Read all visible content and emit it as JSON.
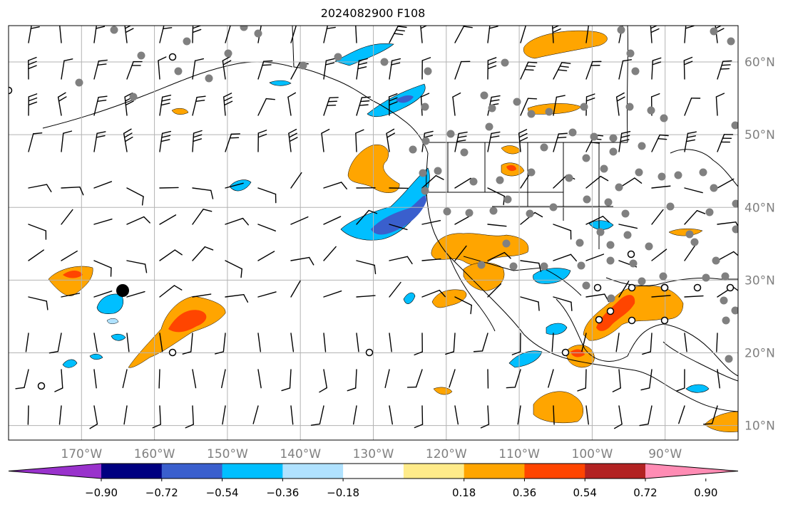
{
  "title": "2024082900 F108",
  "map": {
    "lon_range": [
      -180,
      -80
    ],
    "lat_range": [
      8,
      65
    ],
    "lon_ticks": [
      {
        "lon": -170,
        "label": "170°W"
      },
      {
        "lon": -160,
        "label": "160°W"
      },
      {
        "lon": -150,
        "label": "150°W"
      },
      {
        "lon": -140,
        "label": "140°W"
      },
      {
        "lon": -130,
        "label": "130°W"
      },
      {
        "lon": -120,
        "label": "120°W"
      },
      {
        "lon": -110,
        "label": "110°W"
      },
      {
        "lon": -100,
        "label": "100°W"
      },
      {
        "lon": -90,
        "label": "90°W"
      }
    ],
    "lat_ticks": [
      {
        "lat": 60,
        "label": "60°N"
      },
      {
        "lat": 50,
        "label": "50°N"
      },
      {
        "lat": 40,
        "label": "40°N"
      },
      {
        "lat": 30,
        "label": "30°N"
      },
      {
        "lat": 20,
        "label": "20°N"
      },
      {
        "lat": 10,
        "label": "10°N"
      }
    ],
    "gridlines": true,
    "wind_barbs": "shown",
    "station_markers": "gray filled circles, open circles, one large black dot"
  },
  "colorbar": {
    "orientation": "horizontal",
    "extend": "both",
    "tick_labels": [
      "−0.90",
      "−0.72",
      "−0.54",
      "−0.36",
      "−0.18",
      "0.18",
      "0.36",
      "0.54",
      "0.72",
      "0.90"
    ],
    "colors": [
      "#9932cc",
      "#000080",
      "#3a5fcd",
      "#00bfff",
      "#b0e2ff",
      "#ffffff",
      "#ffeb8a",
      "#ffa500",
      "#ff4500",
      "#b22222",
      "#ff8cb4"
    ]
  },
  "contour_fill_colors": {
    "weak_negative": "#b0e2ff",
    "negative": "#00bfff",
    "strong_negative": "#3a5fcd",
    "weak_positive": "#ffeb8a",
    "positive": "#ffa500",
    "strong_positive": "#ff4500"
  }
}
